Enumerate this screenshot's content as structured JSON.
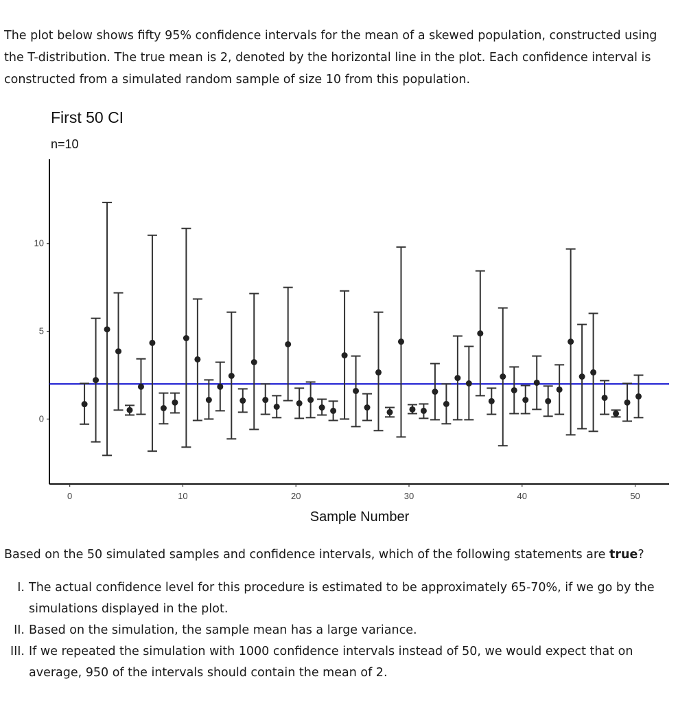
{
  "intro": "The plot below shows fifty 95% confidence intervals for the mean of a skewed population, constructed using the T-distribution. The true mean is 2, denoted by the horizontal line in the plot. Each confidence interval is constructed from a simulated random sample of size 10 from this population.",
  "chart_data": {
    "type": "errorbar",
    "title": "First 50 CI",
    "subtitle": "n=10",
    "xlabel": "Sample Number",
    "ylabel": "",
    "xlim": [
      -1.8,
      53
    ],
    "ylim": [
      -3.7,
      14.8
    ],
    "xticks": [
      0,
      10,
      20,
      30,
      40,
      50
    ],
    "yticks": [
      0,
      5,
      10
    ],
    "grid": false,
    "reference_line": {
      "y": 2,
      "color": "#0000cc"
    },
    "point_color": "#222222",
    "bar_color": "#333333",
    "intervals": [
      {
        "x": 1,
        "lower": -0.29,
        "mean": 0.85,
        "upper": 2.03
      },
      {
        "x": 2,
        "lower": -1.3,
        "mean": 2.22,
        "upper": 5.74
      },
      {
        "x": 3,
        "lower": -2.07,
        "mean": 5.11,
        "upper": 12.34
      },
      {
        "x": 4,
        "lower": 0.51,
        "mean": 3.86,
        "upper": 7.19
      },
      {
        "x": 5,
        "lower": 0.23,
        "mean": 0.51,
        "upper": 0.78
      },
      {
        "x": 6,
        "lower": 0.27,
        "mean": 1.84,
        "upper": 3.43
      },
      {
        "x": 7,
        "lower": -1.83,
        "mean": 4.34,
        "upper": 10.47
      },
      {
        "x": 8,
        "lower": -0.27,
        "mean": 0.62,
        "upper": 1.48
      },
      {
        "x": 9,
        "lower": 0.35,
        "mean": 0.94,
        "upper": 1.48
      },
      {
        "x": 10,
        "lower": -1.6,
        "mean": 4.61,
        "upper": 10.86
      },
      {
        "x": 11,
        "lower": -0.08,
        "mean": 3.4,
        "upper": 6.84
      },
      {
        "x": 12,
        "lower": 0.0,
        "mean": 1.09,
        "upper": 2.23
      },
      {
        "x": 13,
        "lower": 0.47,
        "mean": 1.84,
        "upper": 3.24
      },
      {
        "x": 14,
        "lower": -1.13,
        "mean": 2.46,
        "upper": 6.09
      },
      {
        "x": 15,
        "lower": 0.39,
        "mean": 1.05,
        "upper": 1.72
      },
      {
        "x": 16,
        "lower": -0.59,
        "mean": 3.24,
        "upper": 7.15
      },
      {
        "x": 17,
        "lower": 0.27,
        "mean": 1.09,
        "upper": 2.0
      },
      {
        "x": 18,
        "lower": 0.08,
        "mean": 0.7,
        "upper": 1.33
      },
      {
        "x": 19,
        "lower": 1.05,
        "mean": 4.26,
        "upper": 7.5
      },
      {
        "x": 20,
        "lower": 0.04,
        "mean": 0.9,
        "upper": 1.76
      },
      {
        "x": 21,
        "lower": 0.08,
        "mean": 1.09,
        "upper": 2.11
      },
      {
        "x": 22,
        "lower": 0.23,
        "mean": 0.66,
        "upper": 1.13
      },
      {
        "x": 23,
        "lower": -0.08,
        "mean": 0.47,
        "upper": 1.02
      },
      {
        "x": 24,
        "lower": 0.0,
        "mean": 3.63,
        "upper": 7.3
      },
      {
        "x": 25,
        "lower": -0.43,
        "mean": 1.6,
        "upper": 3.59
      },
      {
        "x": 26,
        "lower": -0.08,
        "mean": 0.66,
        "upper": 1.44
      },
      {
        "x": 27,
        "lower": -0.66,
        "mean": 2.66,
        "upper": 6.09
      },
      {
        "x": 28,
        "lower": 0.12,
        "mean": 0.39,
        "upper": 0.66
      },
      {
        "x": 29,
        "lower": -1.02,
        "mean": 4.41,
        "upper": 9.8
      },
      {
        "x": 30,
        "lower": 0.31,
        "mean": 0.55,
        "upper": 0.82
      },
      {
        "x": 31,
        "lower": 0.04,
        "mean": 0.47,
        "upper": 0.86
      },
      {
        "x": 32,
        "lower": -0.04,
        "mean": 1.56,
        "upper": 3.16
      },
      {
        "x": 33,
        "lower": -0.27,
        "mean": 0.86,
        "upper": 2.0
      },
      {
        "x": 34,
        "lower": -0.04,
        "mean": 2.34,
        "upper": 4.73
      },
      {
        "x": 35,
        "lower": -0.04,
        "mean": 2.03,
        "upper": 4.14
      },
      {
        "x": 36,
        "lower": 1.33,
        "mean": 4.88,
        "upper": 8.44
      },
      {
        "x": 37,
        "lower": 0.27,
        "mean": 1.02,
        "upper": 1.76
      },
      {
        "x": 38,
        "lower": -1.52,
        "mean": 2.42,
        "upper": 6.33
      },
      {
        "x": 39,
        "lower": 0.31,
        "mean": 1.64,
        "upper": 2.97
      },
      {
        "x": 40,
        "lower": 0.31,
        "mean": 1.09,
        "upper": 1.91
      },
      {
        "x": 41,
        "lower": 0.55,
        "mean": 2.07,
        "upper": 3.59
      },
      {
        "x": 42,
        "lower": 0.16,
        "mean": 1.02,
        "upper": 1.88
      },
      {
        "x": 43,
        "lower": 0.27,
        "mean": 1.68,
        "upper": 3.09
      },
      {
        "x": 44,
        "lower": -0.9,
        "mean": 4.41,
        "upper": 9.69
      },
      {
        "x": 45,
        "lower": -0.55,
        "mean": 2.42,
        "upper": 5.39
      },
      {
        "x": 46,
        "lower": -0.7,
        "mean": 2.66,
        "upper": 6.02
      },
      {
        "x": 47,
        "lower": 0.27,
        "mean": 1.21,
        "upper": 2.19
      },
      {
        "x": 48,
        "lower": 0.12,
        "mean": 0.31,
        "upper": 0.51
      },
      {
        "x": 49,
        "lower": -0.12,
        "mean": 0.94,
        "upper": 2.03
      },
      {
        "x": 50,
        "lower": 0.08,
        "mean": 1.29,
        "upper": 2.5
      }
    ]
  },
  "question": {
    "prompt_before": "Based on the 50 simulated samples and confidence intervals, which of the following statements are ",
    "prompt_bold": "true",
    "prompt_after": "?",
    "statements": [
      {
        "num": "I.",
        "text": "The actual confidence level for this procedure is estimated to be approximately 65-70%, if we go by the simulations displayed in the plot."
      },
      {
        "num": "II.",
        "text": "Based on the simulation, the sample mean has a large variance."
      },
      {
        "num": "III.",
        "text": "If we repeated the simulation with 1000 confidence intervals instead of 50, we would expect that on average, 950 of the intervals should contain the mean of 2."
      }
    ]
  }
}
